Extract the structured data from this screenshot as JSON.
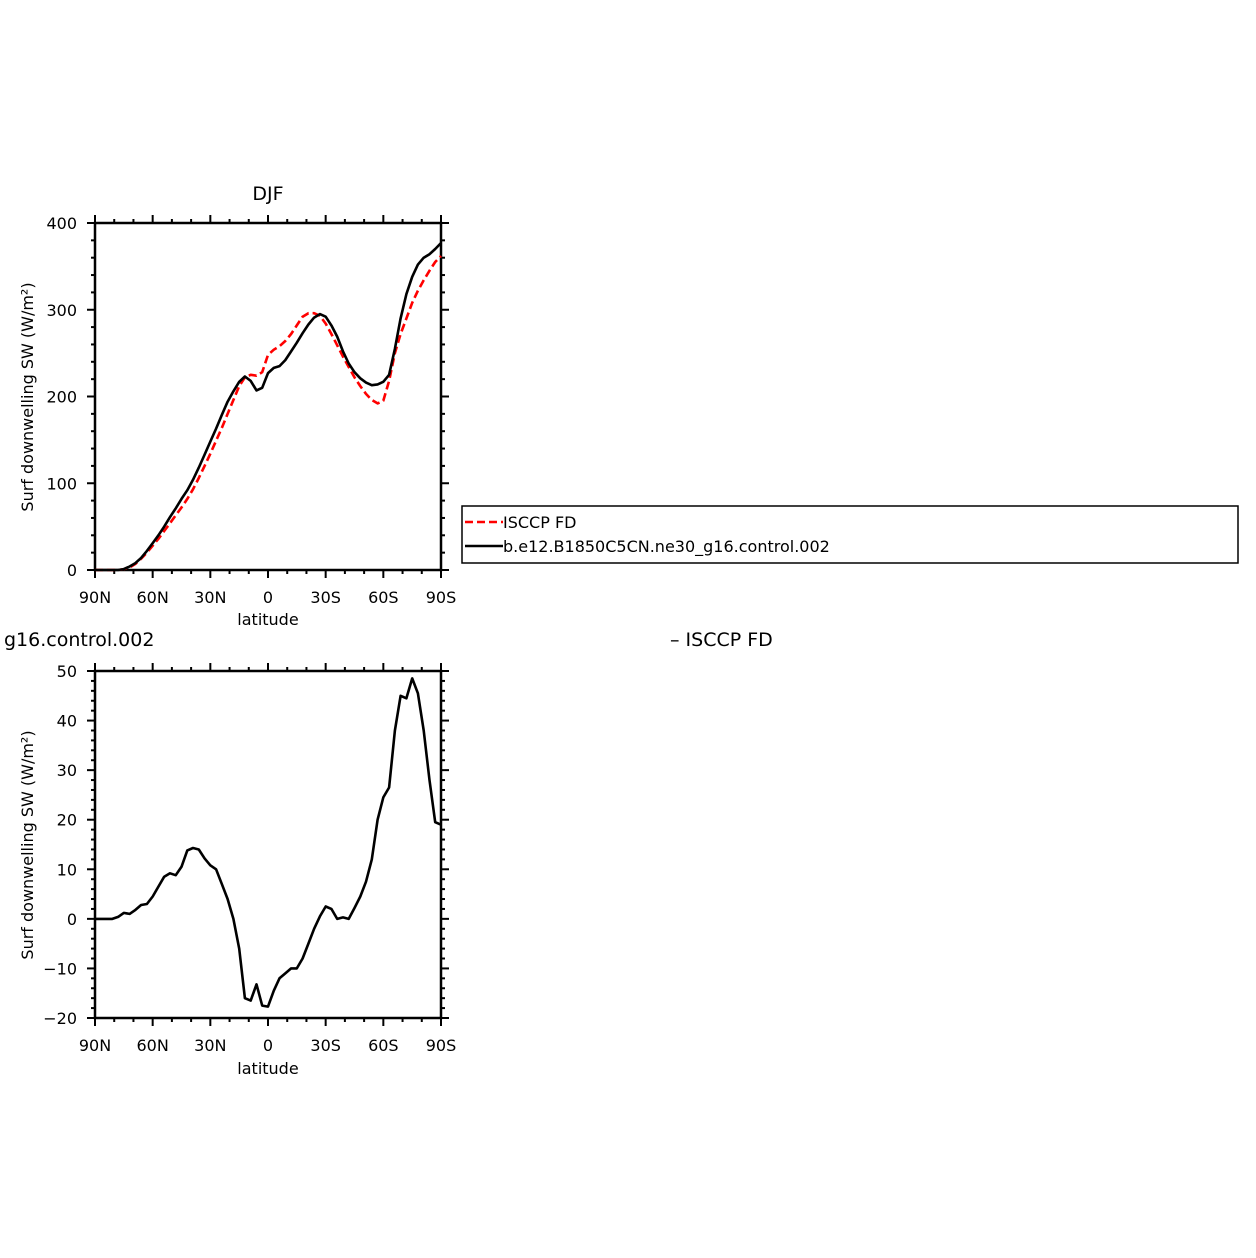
{
  "chart_data": [
    {
      "type": "line",
      "title": "DJF",
      "xlabel": "latitude",
      "ylabel": "Surf downwelling SW (W/m²)",
      "xlim": [
        90,
        -90
      ],
      "ylim": [
        0,
        400
      ],
      "x_tick_labels": [
        "90N",
        "60N",
        "30N",
        "0",
        "30S",
        "60S",
        "90S"
      ],
      "y_tick_labels": [
        "0",
        "100",
        "200",
        "300",
        "400"
      ],
      "x": [
        90,
        87,
        84,
        81,
        78,
        75,
        72,
        69,
        66,
        63,
        60,
        57,
        54,
        51,
        48,
        45,
        42,
        39,
        36,
        33,
        30,
        27,
        24,
        21,
        18,
        15,
        12,
        9,
        6,
        3,
        0,
        -3,
        -6,
        -9,
        -12,
        -15,
        -18,
        -21,
        -24,
        -27,
        -30,
        -33,
        -36,
        -39,
        -42,
        -45,
        -48,
        -51,
        -54,
        -57,
        -60,
        -63,
        -66,
        -69,
        -72,
        -75,
        -78,
        -81,
        -84,
        -87,
        -90
      ],
      "series": [
        {
          "name": "ISCCP FD",
          "color": "#ff0000",
          "dash": "dashed",
          "values": [
            0,
            0,
            0,
            0,
            0,
            1,
            3,
            7,
            13,
            20,
            28,
            36,
            45,
            54,
            63,
            72,
            82,
            93,
            106,
            120,
            134,
            149,
            164,
            180,
            196,
            212,
            222,
            225,
            224,
            228,
            248,
            254,
            258,
            264,
            272,
            282,
            292,
            296,
            296,
            293,
            284,
            272,
            259,
            246,
            234,
            222,
            212,
            203,
            196,
            192,
            195,
            218,
            250,
            272,
            290,
            308,
            322,
            334,
            345,
            355,
            362
          ]
        },
        {
          "name": "b.e12.B1850C5CN.ne30_g16.control.002",
          "color": "#000000",
          "dash": "solid",
          "values": [
            0,
            0,
            0,
            0,
            0,
            1,
            4,
            8,
            14,
            22,
            31,
            40,
            50,
            61,
            71,
            82,
            92,
            104,
            118,
            133,
            148,
            163,
            179,
            194,
            206,
            217,
            223,
            218,
            207,
            210,
            227,
            233,
            235,
            242,
            252,
            262,
            273,
            283,
            291,
            295,
            292,
            282,
            269,
            252,
            238,
            228,
            221,
            216,
            213,
            214,
            217,
            225,
            255,
            290,
            318,
            338,
            352,
            360,
            364,
            370,
            377
          ]
        }
      ],
      "legend": "right"
    },
    {
      "type": "line",
      "title": "g16.control.002",
      "subtitle": "– ISCCP FD",
      "xlabel": "latitude",
      "ylabel": "Surf downwelling SW (W/m²)",
      "xlim": [
        90,
        -90
      ],
      "ylim": [
        -20,
        50
      ],
      "x_tick_labels": [
        "90N",
        "60N",
        "30N",
        "0",
        "30S",
        "60S",
        "90S"
      ],
      "y_tick_labels": [
        "−20",
        "−10",
        "0",
        "10",
        "20",
        "30",
        "40",
        "50"
      ],
      "x": [
        90,
        87,
        84,
        81,
        78,
        75,
        72,
        69,
        66,
        63,
        60,
        57,
        54,
        51,
        48,
        45,
        42,
        39,
        36,
        33,
        30,
        27,
        24,
        21,
        18,
        15,
        12,
        9,
        6,
        3,
        0,
        -3,
        -6,
        -9,
        -12,
        -15,
        -18,
        -21,
        -24,
        -27,
        -30,
        -33,
        -36,
        -39,
        -42,
        -45,
        -48,
        -51,
        -54,
        -57,
        -60,
        -63,
        -66,
        -69,
        -72,
        -75,
        -78,
        -81,
        -84,
        -87,
        -90
      ],
      "series": [
        {
          "name": "",
          "color": "#000000",
          "dash": "solid",
          "values": [
            0,
            0,
            0,
            0,
            0.4,
            1.2,
            1,
            1.8,
            2.8,
            3,
            4.5,
            6.5,
            8.5,
            9.2,
            8.8,
            10.5,
            13.8,
            14.3,
            14,
            12.2,
            10.8,
            10,
            7,
            4,
            0,
            -6,
            -16,
            -16.5,
            -13.2,
            -17.5,
            -17.7,
            -14.5,
            -12,
            -11,
            -10,
            -10,
            -8,
            -5,
            -2,
            0.5,
            2.5,
            2,
            0,
            0.3,
            0,
            2.2,
            4.5,
            7.5,
            12,
            20,
            24.5,
            26.5,
            38,
            45,
            44.5,
            48.5,
            45.5,
            38,
            28,
            19.5,
            19
          ]
        }
      ]
    }
  ]
}
